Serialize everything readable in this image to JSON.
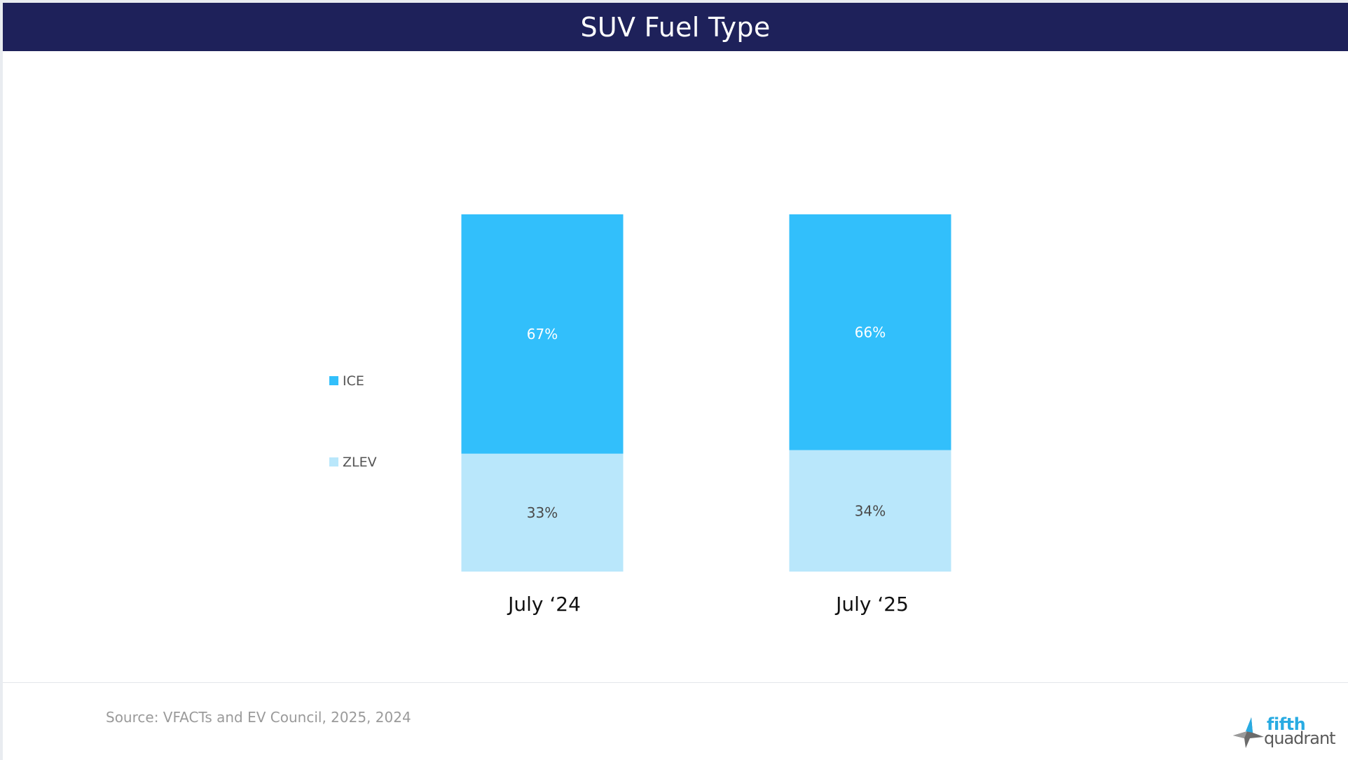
{
  "header": {
    "title": "SUV Fuel Type"
  },
  "chart_data": {
    "type": "bar",
    "stacked": true,
    "title": "SUV Fuel Type",
    "categories": [
      "July ‘24",
      "July ‘25"
    ],
    "series": [
      {
        "name": "ZLEV",
        "values": [
          33,
          34
        ],
        "labels": [
          "33%",
          "34%"
        ],
        "color": "#b9e7fb",
        "label_color": "#4a4a4a"
      },
      {
        "name": "ICE",
        "values": [
          67,
          66
        ],
        "labels": [
          "67%",
          "66%"
        ],
        "color": "#32bffb",
        "label_color": "#ffffff"
      }
    ],
    "legend": {
      "position": "left",
      "order": [
        "ICE",
        "ZLEV"
      ]
    },
    "xlabel": "",
    "ylabel": "",
    "ylim": [
      0,
      100
    ],
    "grid": false
  },
  "footer": {
    "source": "Source: VFACTs and EV Council, 2025, 2024"
  },
  "logo": {
    "line1": "fifth",
    "line2": "quadrant",
    "accent_color": "#29abe2",
    "mark_color": "#6b6b6b"
  },
  "colors": {
    "header_bg": "#1e215a",
    "header_text": "#ffffff"
  }
}
